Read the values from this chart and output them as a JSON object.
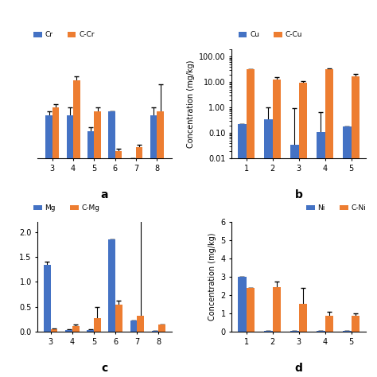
{
  "blue_color": "#4472C4",
  "orange_color": "#ED7D31",
  "a_title": "a",
  "a_xticks": [
    3,
    4,
    5,
    6,
    7,
    8
  ],
  "a_Cr": [
    0.11,
    0.11,
    0.07,
    0.12,
    0.0,
    0.11
  ],
  "a_Cr_err": [
    0.01,
    0.02,
    0.01,
    0.0,
    0.0,
    0.02
  ],
  "a_CCr": [
    0.13,
    0.2,
    0.12,
    0.02,
    0.03,
    0.12
  ],
  "a_CCr_err": [
    0.01,
    0.01,
    0.01,
    0.005,
    0.005,
    0.07
  ],
  "a_ylim": [
    0,
    0.28
  ],
  "a_yticks": [],
  "b_title": "b",
  "b_ylabel": "Concentration (mg/kg)",
  "b_xticks": [
    1,
    2,
    3,
    4,
    5
  ],
  "b_Cu": [
    0.22,
    0.35,
    0.035,
    0.11,
    0.18
  ],
  "b_Cu_err": [
    0.0,
    0.65,
    0.95,
    0.55,
    0.0
  ],
  "b_CCu": [
    32.0,
    13.0,
    9.5,
    32.0,
    17.0
  ],
  "b_CCu_err": [
    0.0,
    2.5,
    1.5,
    2.0,
    3.5
  ],
  "b_ylim": [
    0.01,
    200.0
  ],
  "b_yticks": [
    0.01,
    0.1,
    1.0,
    10.0,
    100.0
  ],
  "b_yticklabels": [
    "0.01",
    "0.10",
    "1.00",
    "10.00",
    "100.00"
  ],
  "c_title": "c",
  "c_xticks": [
    3,
    4,
    5,
    6,
    7,
    8
  ],
  "c_Mg": [
    1.35,
    0.04,
    0.04,
    1.85,
    0.22,
    0.01
  ],
  "c_Mg_err": [
    0.05,
    0.01,
    0.01,
    0.0,
    0.0,
    0.0
  ],
  "c_CMg": [
    0.05,
    0.12,
    0.28,
    0.55,
    0.32,
    0.14
  ],
  "c_CMg_err": [
    0.01,
    0.02,
    0.22,
    0.08,
    6.5,
    0.0
  ],
  "c_ylim": [
    0,
    2.2
  ],
  "d_title": "d",
  "d_ylabel": "Concentration (mg/kg)",
  "d_xticks": [
    1,
    2,
    3,
    4,
    5
  ],
  "d_Ni": [
    3.0,
    0.05,
    0.05,
    0.05,
    0.05
  ],
  "d_Ni_err": [
    0.0,
    0.0,
    0.0,
    0.0,
    0.0
  ],
  "d_CNi": [
    2.38,
    2.45,
    1.55,
    0.88,
    0.88
  ],
  "d_CNi_err": [
    0.0,
    0.28,
    0.85,
    0.22,
    0.12
  ],
  "d_ylim": [
    0,
    6
  ],
  "d_yticks": [
    0,
    1,
    2,
    3,
    4,
    5,
    6
  ]
}
